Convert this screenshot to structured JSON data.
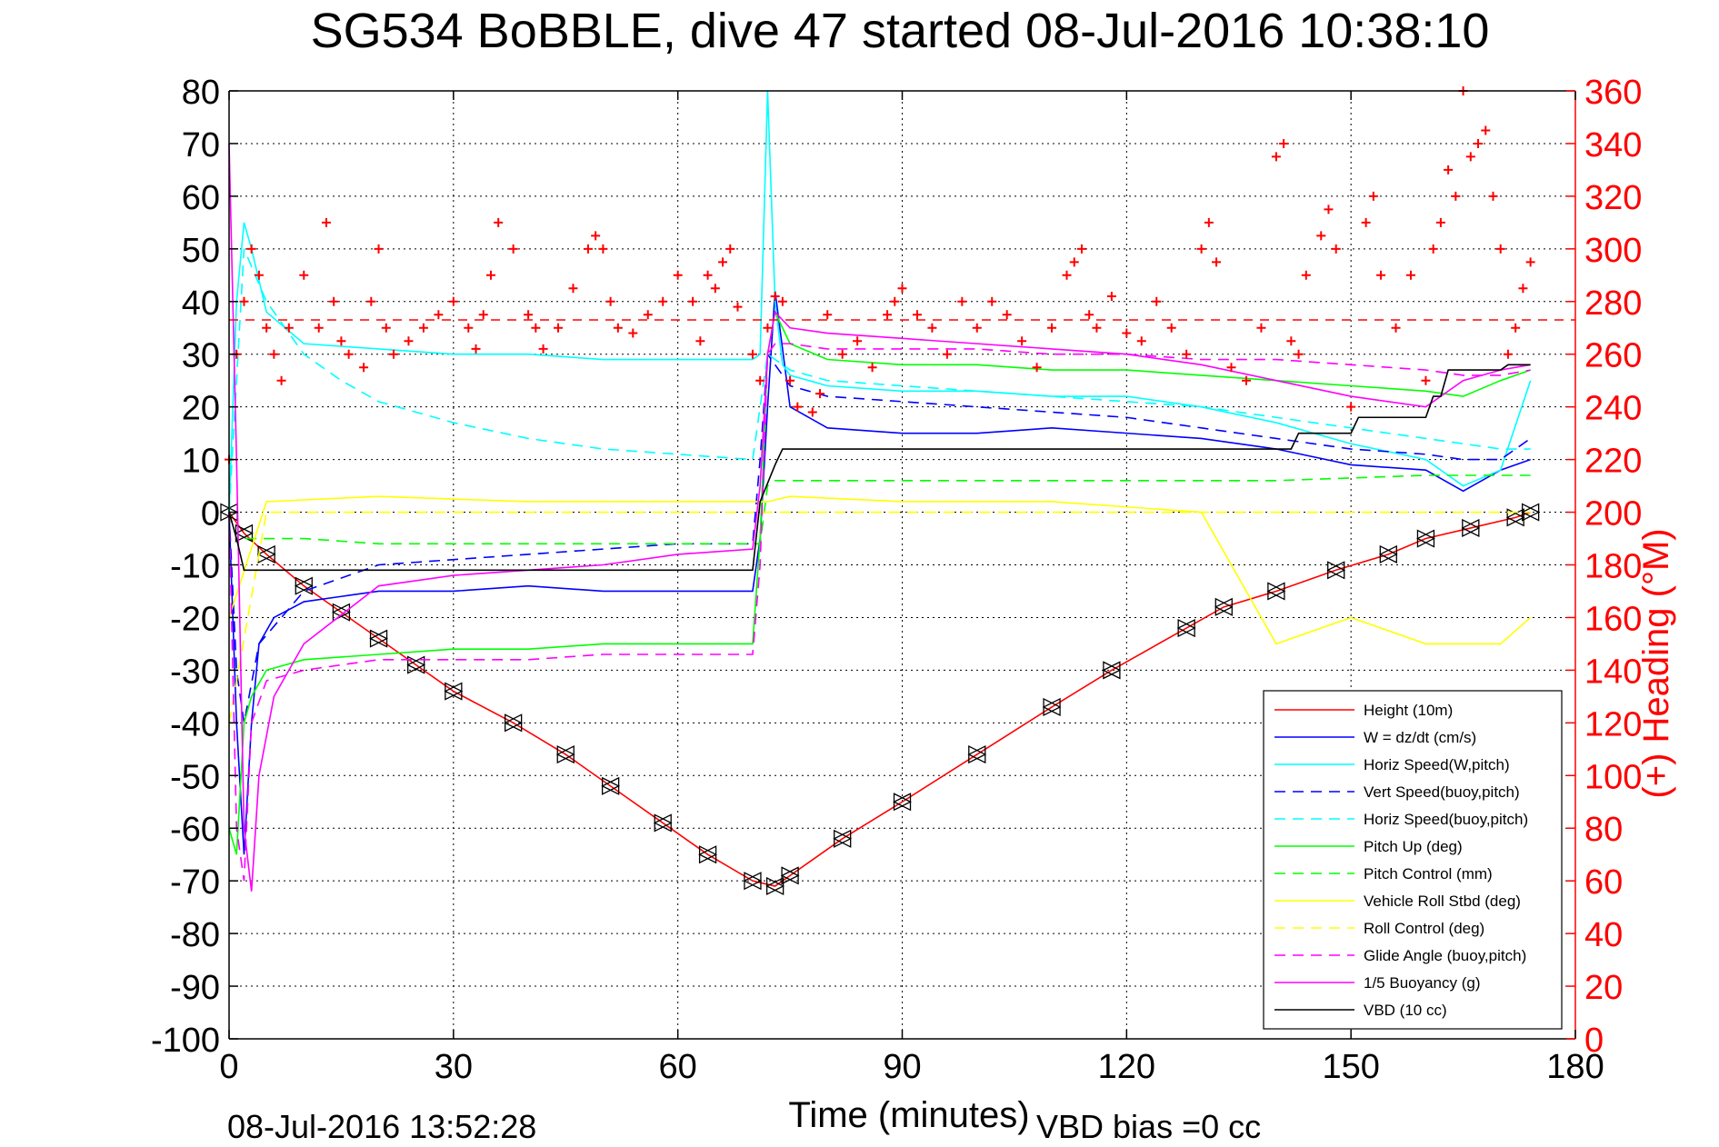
{
  "figure": {
    "title": "SG534 BoBBLE, dive 47 started 08-Jul-2016 10:38:10",
    "timestamp": "08-Jul-2016 13:52:28",
    "note": "VBD bias =0 cc"
  },
  "chart_data": {
    "type": "line",
    "title": "SG534 BoBBLE, dive 47 started 08-Jul-2016 10:38:10",
    "xlabel": "Time (minutes)",
    "ylabel": "",
    "y2label": "(+) Heading (°M)",
    "xlim": [
      0,
      180
    ],
    "ylim": [
      -100,
      80
    ],
    "y2lim": [
      0,
      360
    ],
    "xticks": [
      0,
      30,
      60,
      90,
      120,
      150,
      180
    ],
    "yticks": [
      80,
      70,
      60,
      50,
      40,
      30,
      20,
      10,
      0,
      -10,
      -20,
      -30,
      -40,
      -50,
      -60,
      -70,
      -80,
      -90,
      -100
    ],
    "y2ticks": [
      360,
      340,
      320,
      300,
      280,
      260,
      240,
      220,
      200,
      180,
      160,
      140,
      120,
      100,
      80,
      60,
      40,
      20,
      0
    ],
    "grid": true,
    "legend_position": "bottom-right",
    "series": [
      {
        "name": "Height (10m)",
        "color": "#ff0000",
        "style": "solid",
        "marker": "triangles",
        "x": [
          0,
          2,
          5,
          10,
          15,
          20,
          25,
          30,
          38,
          45,
          51,
          58,
          64,
          70,
          73,
          75,
          82,
          90,
          100,
          110,
          118,
          128,
          133,
          140,
          148,
          155,
          160,
          166,
          172,
          174
        ],
        "y": [
          0,
          -4,
          -8,
          -14,
          -19,
          -24,
          -29,
          -34,
          -40,
          -46,
          -52,
          -59,
          -65,
          -70,
          -71,
          -69,
          -62,
          -55,
          -46,
          -37,
          -30,
          -22,
          -18,
          -15,
          -11,
          -8,
          -5,
          -3,
          -1,
          0
        ]
      },
      {
        "name": "W = dz/dt (cm/s)",
        "color": "#0000ff",
        "style": "solid",
        "x": [
          0,
          1,
          2,
          3,
          4,
          6,
          10,
          15,
          20,
          30,
          40,
          50,
          60,
          70,
          71,
          72,
          73,
          75,
          80,
          90,
          100,
          110,
          120,
          130,
          140,
          150,
          160,
          165,
          170,
          174
        ],
        "y": [
          0,
          -40,
          -65,
          -40,
          -25,
          -20,
          -17,
          -16,
          -15,
          -15,
          -14,
          -15,
          -15,
          -15,
          -5,
          20,
          42,
          20,
          16,
          15,
          15,
          16,
          15,
          14,
          12,
          9,
          8,
          4,
          8,
          10
        ]
      },
      {
        "name": "Horiz Speed(W,pitch)",
        "color": "#00ffff",
        "style": "solid",
        "x": [
          0,
          1,
          2,
          3,
          5,
          10,
          20,
          30,
          40,
          50,
          60,
          70,
          71,
          72,
          73,
          74,
          75,
          80,
          90,
          100,
          110,
          120,
          130,
          140,
          150,
          160,
          165,
          170,
          174
        ],
        "y": [
          0,
          40,
          55,
          50,
          38,
          32,
          31,
          30,
          30,
          29,
          29,
          29,
          30,
          80,
          40,
          28,
          26,
          24,
          23,
          23,
          22,
          22,
          20,
          17,
          13,
          10,
          5,
          8,
          25
        ]
      },
      {
        "name": "Vert Speed(buoy,pitch)",
        "color": "#0000ff",
        "style": "dashed",
        "x": [
          0,
          1,
          2,
          4,
          10,
          20,
          30,
          40,
          50,
          60,
          70,
          71,
          72,
          73,
          75,
          80,
          90,
          100,
          110,
          120,
          130,
          140,
          150,
          160,
          165,
          170,
          174
        ],
        "y": [
          0,
          -30,
          -40,
          -25,
          -15,
          -10,
          -9,
          -8,
          -7,
          -6,
          -6,
          10,
          30,
          28,
          24,
          22,
          21,
          20,
          19,
          18,
          16,
          14,
          12,
          11,
          10,
          10,
          14
        ]
      },
      {
        "name": "Horiz Speed(buoy,pitch)",
        "color": "#00ffff",
        "style": "dashed",
        "x": [
          0,
          2,
          5,
          10,
          15,
          20,
          30,
          40,
          50,
          60,
          70,
          72,
          75,
          80,
          90,
          100,
          110,
          120,
          130,
          140,
          150,
          160,
          170,
          174
        ],
        "y": [
          0,
          50,
          40,
          30,
          25,
          21,
          17,
          14,
          12,
          11,
          10,
          30,
          27,
          25,
          24,
          23,
          22,
          21,
          20,
          18,
          16,
          14,
          12,
          12
        ]
      },
      {
        "name": "Pitch Up (deg)",
        "color": "#00ff00",
        "style": "solid",
        "x": [
          0,
          1,
          2,
          3,
          5,
          10,
          20,
          30,
          40,
          50,
          60,
          70,
          71,
          72,
          73,
          75,
          80,
          90,
          100,
          110,
          120,
          130,
          140,
          150,
          160,
          165,
          170,
          174
        ],
        "y": [
          -60,
          -65,
          -40,
          -35,
          -30,
          -28,
          -27,
          -26,
          -26,
          -25,
          -25,
          -25,
          -5,
          30,
          38,
          32,
          29,
          28,
          28,
          27,
          27,
          26,
          25,
          24,
          23,
          22,
          25,
          27
        ]
      },
      {
        "name": "Pitch Control (mm)",
        "color": "#00ff00",
        "style": "dashed",
        "x": [
          0,
          1,
          2,
          3,
          10,
          20,
          40,
          60,
          70,
          71,
          72,
          73,
          75,
          80,
          100,
          120,
          140,
          160,
          174
        ],
        "y": [
          0,
          -5,
          -5,
          -5,
          -5,
          -6,
          -6,
          -6,
          -6,
          -6,
          5,
          6,
          6,
          6,
          6,
          6,
          6,
          7,
          7
        ]
      },
      {
        "name": "Vehicle Roll Stbd (deg)",
        "color": "#ffff00",
        "style": "solid",
        "x": [
          0,
          5,
          20,
          40,
          60,
          70,
          72,
          75,
          90,
          110,
          120,
          130,
          140,
          150,
          160,
          170,
          174
        ],
        "y": [
          -20,
          2,
          3,
          2,
          2,
          2,
          2,
          3,
          2,
          2,
          1,
          0,
          -25,
          -20,
          -25,
          -25,
          -20
        ]
      },
      {
        "name": "Roll Control (deg)",
        "color": "#ffff00",
        "style": "dashed",
        "x": [
          0,
          5,
          20,
          40,
          60,
          70,
          72,
          80,
          100,
          120,
          140,
          160,
          174
        ],
        "y": [
          -40,
          0,
          0,
          0,
          0,
          0,
          0,
          0,
          0,
          0,
          0,
          0,
          0
        ]
      },
      {
        "name": "Glide Angle (buoy,pitch)",
        "color": "#ff00ff",
        "style": "dashed",
        "x": [
          0,
          1,
          2,
          3,
          5,
          10,
          20,
          30,
          40,
          50,
          60,
          70,
          71,
          72,
          73,
          75,
          80,
          90,
          100,
          110,
          120,
          130,
          140,
          150,
          160,
          165,
          170,
          174
        ],
        "y": [
          0,
          -60,
          -70,
          -40,
          -32,
          -30,
          -28,
          -28,
          -28,
          -27,
          -27,
          -27,
          -10,
          30,
          32,
          32,
          31,
          31,
          31,
          30,
          30,
          29,
          29,
          28,
          27,
          26,
          26,
          27
        ]
      },
      {
        "name": "1/5 Buoyancy (g)",
        "color": "#ff00ff",
        "style": "solid",
        "x": [
          0,
          1,
          2,
          3,
          4,
          6,
          10,
          20,
          30,
          40,
          50,
          60,
          70,
          71,
          72,
          73,
          75,
          80,
          90,
          100,
          110,
          120,
          130,
          140,
          150,
          160,
          165,
          170,
          174
        ],
        "y": [
          70,
          10,
          -60,
          -72,
          -50,
          -35,
          -25,
          -14,
          -12,
          -11,
          -10,
          -8,
          -7,
          5,
          30,
          38,
          35,
          34,
          33,
          32,
          31,
          30,
          28,
          25,
          22,
          20,
          25,
          27,
          28
        ]
      },
      {
        "name": "VBD (10 cc)",
        "color": "#000000",
        "style": "solid",
        "step": true,
        "x": [
          0,
          1,
          2,
          70,
          71,
          73,
          74,
          100,
          120,
          130,
          142,
          143,
          150,
          151,
          160,
          161,
          162,
          163,
          170,
          171,
          174
        ],
        "y": [
          0,
          -5,
          -11,
          -11,
          2,
          9,
          12,
          12,
          12,
          12,
          12,
          15,
          15,
          18,
          18,
          22,
          22,
          27,
          27,
          28,
          28
        ]
      }
    ],
    "heading": {
      "name": "(+) Heading (°M)",
      "color": "#ff0000",
      "marker": "+",
      "axis": "right",
      "mean": 273,
      "x": [
        0,
        1,
        2,
        3,
        4,
        5,
        6,
        7,
        8,
        10,
        12,
        13,
        14,
        15,
        16,
        18,
        19,
        20,
        21,
        22,
        24,
        26,
        28,
        30,
        32,
        33,
        34,
        35,
        36,
        38,
        40,
        41,
        42,
        44,
        46,
        48,
        49,
        50,
        51,
        52,
        54,
        56,
        58,
        60,
        62,
        63,
        64,
        65,
        66,
        67,
        68,
        70,
        71,
        72,
        73,
        74,
        75,
        76,
        78,
        79,
        80,
        82,
        84,
        86,
        88,
        89,
        90,
        92,
        94,
        96,
        98,
        100,
        102,
        104,
        106,
        108,
        110,
        112,
        113,
        114,
        115,
        116,
        118,
        120,
        122,
        124,
        126,
        128,
        130,
        131,
        132,
        134,
        136,
        138,
        140,
        141,
        142,
        143,
        144,
        146,
        147,
        148,
        150,
        152,
        153,
        154,
        156,
        158,
        160,
        161,
        162,
        163,
        164,
        165,
        166,
        167,
        168,
        169,
        170,
        171,
        172,
        173,
        174
      ],
      "y": [
        220,
        260,
        280,
        300,
        290,
        270,
        260,
        250,
        270,
        290,
        270,
        310,
        280,
        265,
        260,
        255,
        280,
        300,
        270,
        260,
        265,
        270,
        275,
        280,
        270,
        262,
        275,
        290,
        310,
        300,
        275,
        270,
        262,
        270,
        285,
        300,
        305,
        300,
        280,
        270,
        268,
        275,
        280,
        290,
        280,
        265,
        290,
        285,
        295,
        300,
        278,
        260,
        250,
        270,
        282,
        280,
        250,
        240,
        238,
        245,
        275,
        260,
        265,
        255,
        275,
        280,
        285,
        275,
        270,
        260,
        280,
        270,
        280,
        275,
        265,
        255,
        270,
        290,
        295,
        300,
        275,
        270,
        282,
        268,
        265,
        280,
        270,
        260,
        300,
        310,
        295,
        255,
        250,
        270,
        335,
        340,
        265,
        260,
        290,
        305,
        315,
        300,
        240,
        310,
        320,
        290,
        270,
        290,
        250,
        300,
        310,
        330,
        320,
        360,
        335,
        340,
        345,
        320,
        300,
        260,
        270,
        285,
        295
      ]
    }
  }
}
